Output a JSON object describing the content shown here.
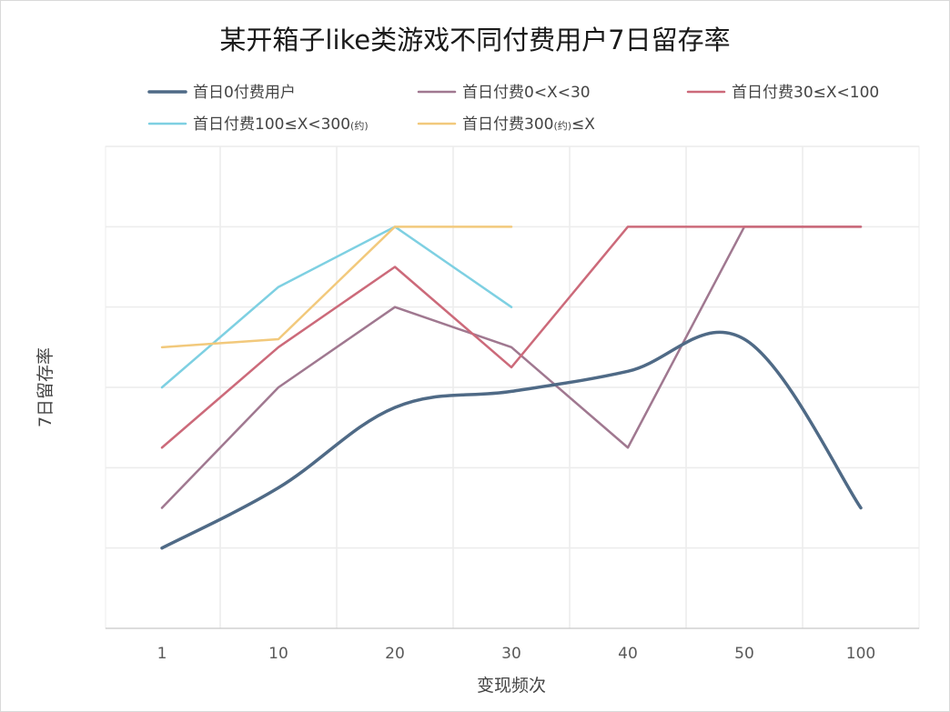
{
  "chart_data": {
    "type": "line",
    "title": "某开箱子like类游戏不同付费用户7日留存率",
    "xlabel": "变现频次",
    "ylabel": "7日留存率",
    "categories": [
      "1",
      "10",
      "20",
      "30",
      "40",
      "50",
      "100"
    ],
    "grid": true,
    "legend_position": "top",
    "y_tick_labels_shown": false,
    "series": [
      {
        "name": "首日0付费用户",
        "color": "#4f6a86",
        "smooth": true,
        "values": [
          1,
          1.75,
          2.75,
          2.95,
          3.2,
          3.6,
          1.5
        ]
      },
      {
        "name": "首日付费0<X<30",
        "color": "#a07890",
        "smooth": false,
        "values": [
          1.5,
          3,
          4,
          3.5,
          2.25,
          5,
          5
        ]
      },
      {
        "name": "首日付费30≤X<100",
        "color": "#cc6a7a",
        "smooth": false,
        "values": [
          2.25,
          3.5,
          4.5,
          3.25,
          5,
          5,
          5
        ]
      },
      {
        "name": "首日付费100≤X<300",
        "name_note": "(约)",
        "color": "#7ed0e2",
        "smooth": false,
        "values": [
          3,
          4.25,
          5,
          4,
          null,
          null,
          null
        ]
      },
      {
        "name": "首日付费300",
        "name_note": "(约)",
        "name_suffix": "≤X",
        "color": "#f2c97c",
        "smooth": false,
        "values": [
          3.5,
          3.6,
          5,
          5,
          null,
          null,
          null
        ]
      }
    ]
  }
}
